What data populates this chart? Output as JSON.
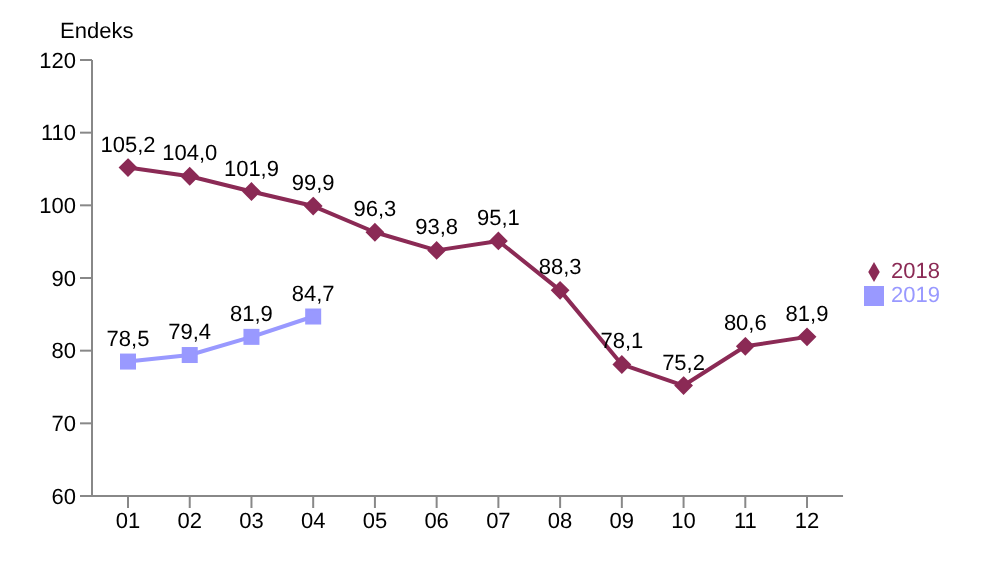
{
  "chart_data": {
    "type": "line",
    "ylabel": "Endeks",
    "categories": [
      "01",
      "02",
      "03",
      "04",
      "05",
      "06",
      "07",
      "08",
      "09",
      "10",
      "11",
      "12"
    ],
    "series": [
      {
        "name": "2018",
        "color": "#8b2a55",
        "marker": "diamond",
        "values": [
          105.2,
          104.0,
          101.9,
          99.9,
          96.3,
          93.8,
          95.1,
          88.3,
          78.1,
          75.2,
          80.6,
          81.9
        ],
        "value_labels": [
          "105,2",
          "104,0",
          "101,9",
          "99,9",
          "96,3",
          "93,8",
          "95,1",
          "88,3",
          "78,1",
          "75,2",
          "80,6",
          "81,9"
        ]
      },
      {
        "name": "2019",
        "color": "#9999ff",
        "marker": "square",
        "values": [
          78.5,
          79.4,
          81.9,
          84.7,
          null,
          null,
          null,
          null,
          null,
          null,
          null,
          null
        ],
        "value_labels": [
          "78,5",
          "79,4",
          "81,9",
          "84,7",
          null,
          null,
          null,
          null,
          null,
          null,
          null,
          null
        ]
      }
    ],
    "ylim": [
      60,
      120
    ],
    "yticks": [
      60,
      70,
      80,
      90,
      100,
      110,
      120
    ],
    "grid": false,
    "legend": "right"
  }
}
